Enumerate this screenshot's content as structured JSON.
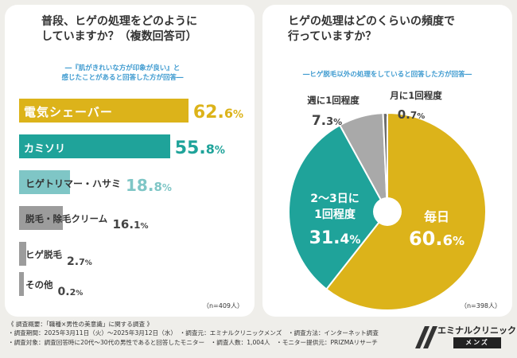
{
  "left": {
    "title_line1": "普段、ヒゲの処理をどのように",
    "title_line2": "していますか？（複数回答可）",
    "note_line1": "―『肌がきれいな方が印象が良い』と",
    "note_line2": "感じたことがあると回答した方が回答―",
    "n": "（n=409人）"
  },
  "right": {
    "title_line1": "ヒゲの処理はどのくらいの頻度で",
    "title_line2": "行っていますか？",
    "note": "―ヒゲ脱毛以外の処理をしていると回答した方が回答―",
    "n": "（n=398人）"
  },
  "footer": {
    "line1": "《 調査概要：「職種×男性の美意識」に関する調査 》",
    "line2": "・調査期間：2025年3月11日（火）～2025年3月12日（水）　・調査元：エミナルクリニックメンズ　・調査方法：インターネット調査",
    "line3": "・調査対象：調査回答時に20代～30代の男性であると回答したモニター　・調査人数：1,004人　・モニター提供元：PRIZMAリサーチ"
  },
  "logo": {
    "name": "エミナルクリニック",
    "sub": "メンズ"
  },
  "colors": {
    "gold": "#dcb31a",
    "teal": "#1fa39a",
    "light_teal": "#7fc6c6",
    "gray": "#9c9c9c",
    "accent_blue": "#3f9bd0"
  },
  "chart_data": [
    {
      "type": "bar",
      "orientation": "horizontal",
      "title": "普段、ヒゲの処理をどのようにしていますか？（複数回答可）",
      "categories": [
        "電気シェーバー",
        "カミソリ",
        "ヒゲトリマー・ハサミ",
        "脱毛・除毛クリーム",
        "ヒゲ脱毛",
        "その他"
      ],
      "values": [
        62.6,
        55.8,
        18.8,
        16.1,
        2.7,
        0.2
      ],
      "display": [
        {
          "int": "62.",
          "dec": "6",
          "unit": "%"
        },
        {
          "int": "55.",
          "dec": "8",
          "unit": "%"
        },
        {
          "int": "18.",
          "dec": "8",
          "unit": "%"
        },
        {
          "int": "16.",
          "dec": "1",
          "unit": "%"
        },
        {
          "int": "2.",
          "dec": "7",
          "unit": "%"
        },
        {
          "int": "0.",
          "dec": "2",
          "unit": "%"
        }
      ],
      "colors": [
        "#dcb31a",
        "#1fa39a",
        "#7fc6c6",
        "#9c9c9c",
        "#9c9c9c",
        "#9c9c9c"
      ],
      "xlim": [
        0,
        100
      ]
    },
    {
      "type": "pie",
      "title": "ヒゲの処理はどのくらいの頻度で行っていますか？",
      "categories": [
        "毎日",
        "2～3日に1回程度",
        "週に1回程度",
        "月に1回程度"
      ],
      "values": [
        60.6,
        31.4,
        7.3,
        0.7
      ],
      "labels": [
        {
          "l1": "毎日",
          "l2": "",
          "int": "60.",
          "dec": "6",
          "unit": "%"
        },
        {
          "l1": "2～3日に",
          "l2": "1回程度",
          "int": "31.",
          "dec": "4",
          "unit": "%"
        },
        {
          "l1": "週に1回程度",
          "l2": "",
          "int": "7.",
          "dec": "3",
          "unit": "%"
        },
        {
          "l1": "月に1回程度",
          "l2": "",
          "int": "0.",
          "dec": "7",
          "unit": "%"
        }
      ],
      "colors": [
        "#dcb31a",
        "#1fa39a",
        "#a9a9a9",
        "#6e6e6e"
      ]
    }
  ]
}
